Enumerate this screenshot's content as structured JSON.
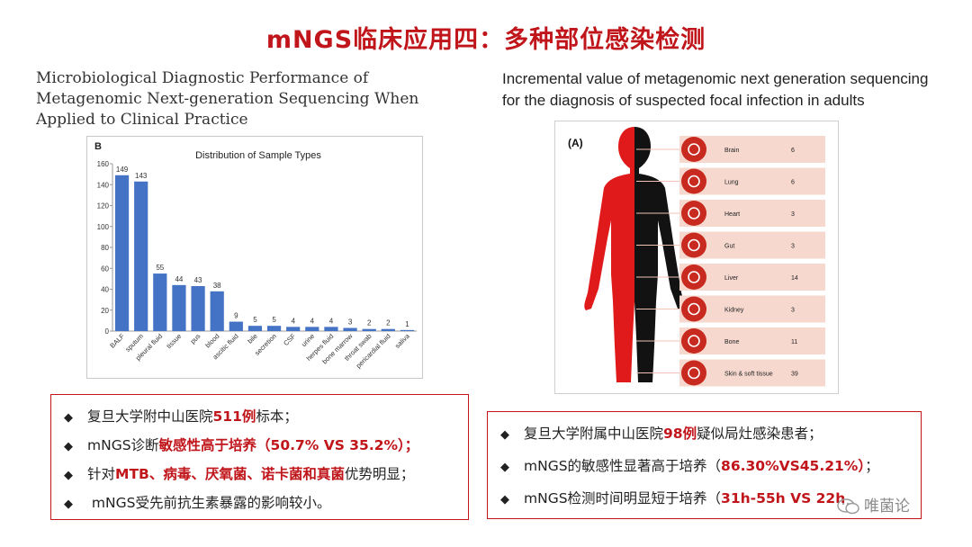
{
  "slide_title": "mNGS临床应用四：多种部位感染检测",
  "left": {
    "heading": "Microbiological Diagnostic Performance of Metagenomic Next-generation Sequencing When Applied to Clinical Practice",
    "panel_label": "B",
    "chart_data": {
      "type": "bar",
      "title": "Distribution of Sample Types",
      "categories": [
        "BALF",
        "sputum",
        "pleural fluid",
        "tissue",
        "pus",
        "blood",
        "ascitic fluid",
        "bile",
        "secretion",
        "CSF",
        "urine",
        "herpes fluid",
        "bone marrow",
        "throat swab",
        "pericardial fluid",
        "saliva"
      ],
      "values": [
        149,
        143,
        55,
        44,
        43,
        38,
        9,
        5,
        5,
        4,
        4,
        4,
        3,
        2,
        2,
        1
      ],
      "ylim": [
        0,
        160
      ],
      "yticks": [
        0,
        20,
        40,
        60,
        80,
        100,
        120,
        140,
        160
      ],
      "color": "#4472c4",
      "grid": false
    }
  },
  "right": {
    "heading": "Incremental value of metagenomic next generation sequencing for the diagnosis of suspected focal infection in adults",
    "panel_label": "(A)",
    "organs": [
      {
        "icon": "brain-icon",
        "name": "Brain",
        "count": "6"
      },
      {
        "icon": "lung-icon",
        "name": "Lung",
        "count": "6"
      },
      {
        "icon": "heart-icon",
        "name": "Heart",
        "count": "3"
      },
      {
        "icon": "gut-icon",
        "name": "Gut",
        "count": "3"
      },
      {
        "icon": "liver-icon",
        "name": "Liver",
        "count": "14"
      },
      {
        "icon": "kidney-icon",
        "name": "Kidney",
        "count": "3"
      },
      {
        "icon": "bone-icon",
        "name": "Bone",
        "count": "11"
      },
      {
        "icon": "skin-icon",
        "name": "Skin & soft tissue",
        "count": "39"
      }
    ],
    "colors": {
      "body_left": "#e01a1a",
      "body_right": "#121212",
      "row_bg": "#f6d8cf",
      "icon_bg": "#c82a1f"
    }
  },
  "left_bullets": [
    {
      "parts": [
        {
          "t": "复旦大学附中山医院"
        },
        {
          "t": "511例",
          "hl": true
        },
        {
          "t": "标本；"
        }
      ]
    },
    {
      "parts": [
        {
          "t": "mNGS诊断"
        },
        {
          "t": "敏感性高于培养（50.7% VS 35.2%）；",
          "hl": true
        }
      ]
    },
    {
      "parts": [
        {
          "t": "针对"
        },
        {
          "t": "MTB、病毒、厌氧菌、诺卡菌和真菌",
          "hl": true
        },
        {
          "t": "优势明显；"
        }
      ]
    },
    {
      "parts": [
        {
          "t": " mNGS受先前抗生素暴露的影响较小。"
        }
      ]
    }
  ],
  "right_bullets": [
    {
      "parts": [
        {
          "t": "复旦大学附属中山医院"
        },
        {
          "t": "98例",
          "hl": true
        },
        {
          "t": "疑似局灶感染患者；"
        }
      ]
    },
    {
      "parts": [
        {
          "t": "mNGS的敏感性显著高于培养（"
        },
        {
          "t": "86.30%VS45.21%）",
          "hl": true
        },
        {
          "t": "；"
        }
      ]
    },
    {
      "parts": [
        {
          "t": "mNGS检测时间明显短于培养（"
        },
        {
          "t": "31h-55h VS 22h",
          "hl": true
        }
      ]
    }
  ],
  "bullet_symbol": "◆",
  "watermark": "唯菌论"
}
